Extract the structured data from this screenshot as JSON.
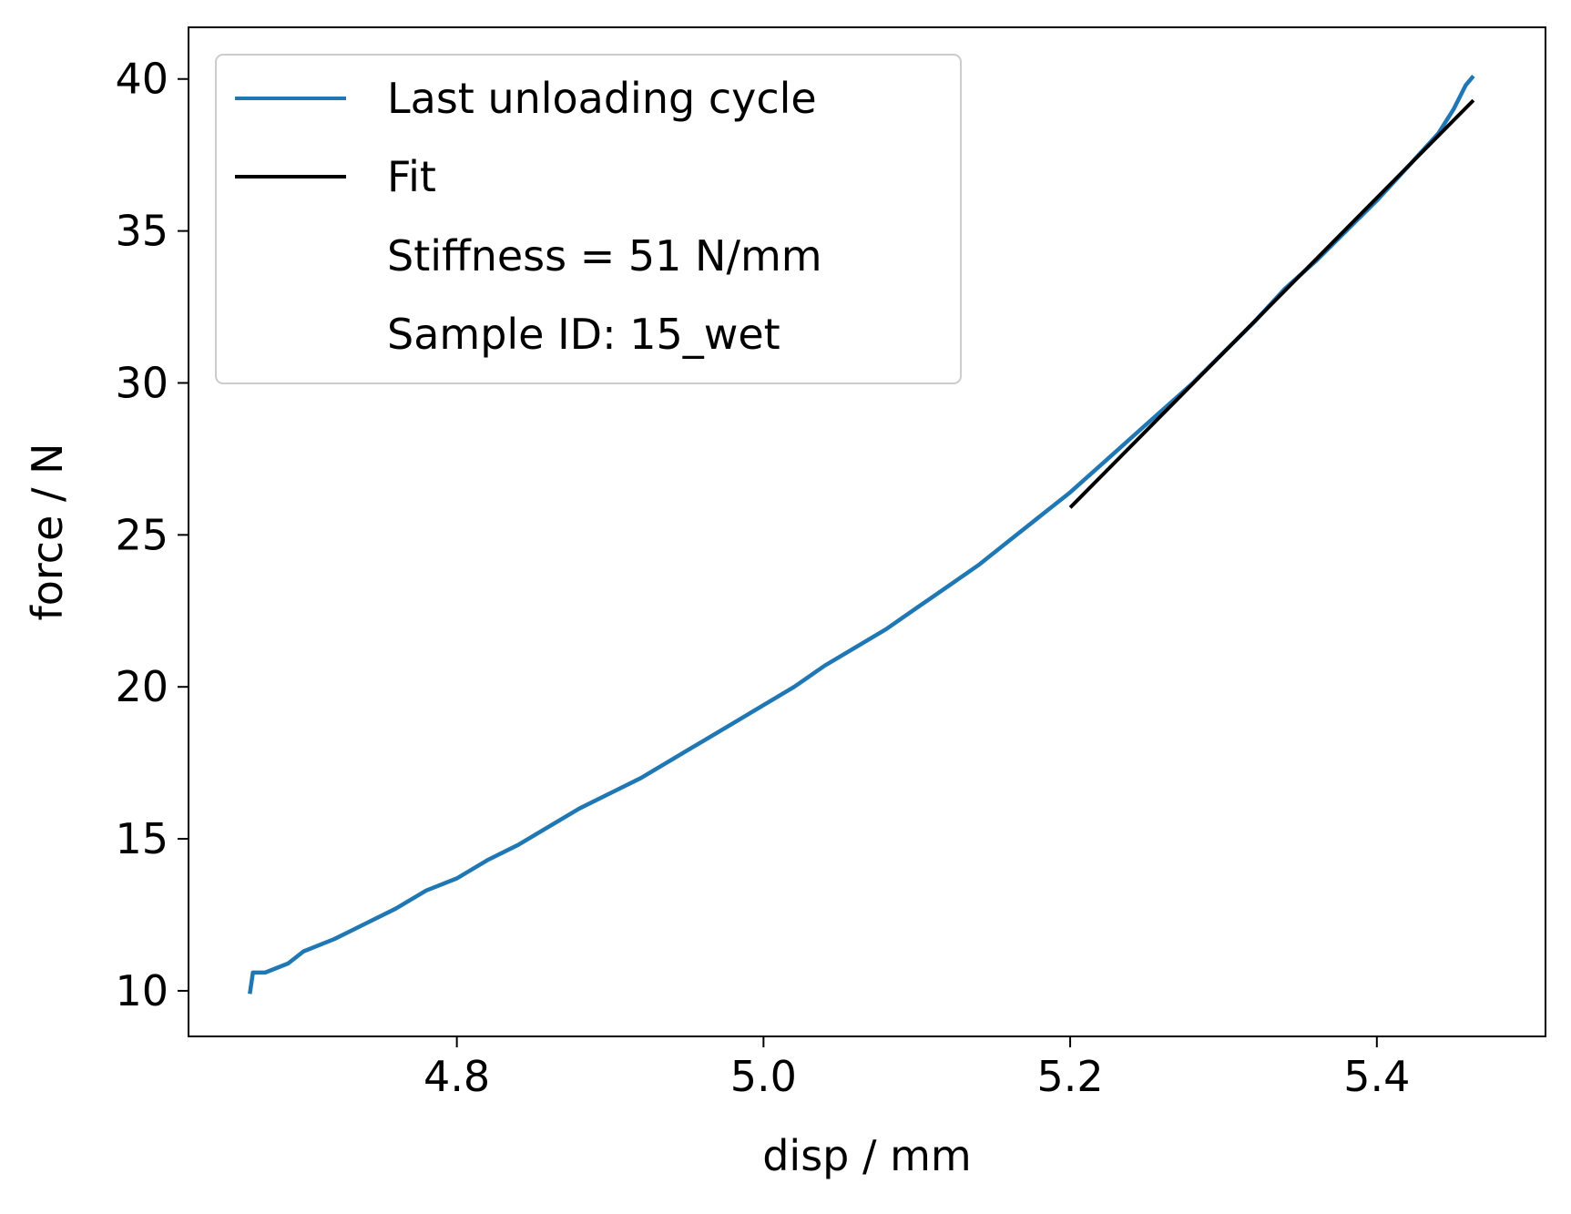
{
  "chart_data": {
    "type": "line",
    "title": "",
    "xlabel": "disp / mm",
    "ylabel": "force / N",
    "xlim": [
      4.625,
      5.51
    ],
    "ylim": [
      8.5,
      41.7
    ],
    "xticks": [
      4.8,
      5.0,
      5.2,
      5.4
    ],
    "xtick_labels": [
      "4.8",
      "5.0",
      "5.2",
      "5.4"
    ],
    "yticks": [
      10,
      15,
      20,
      25,
      30,
      35,
      40
    ],
    "ytick_labels": [
      "10",
      "15",
      "20",
      "25",
      "30",
      "35",
      "40"
    ],
    "grid": false,
    "legend_position": "upper-left",
    "legend": [
      {
        "label": "Last unloading cycle",
        "color": "#1f77b4",
        "marker": "line"
      },
      {
        "label": "Fit",
        "color": "#000000",
        "marker": "line"
      },
      {
        "label": "Stiffness = 51 N/mm",
        "color": "",
        "marker": "none"
      },
      {
        "label": "Sample ID: 15_wet",
        "color": "",
        "marker": "none"
      }
    ],
    "series": [
      {
        "name": "Last unloading cycle",
        "color": "#1f77b4",
        "x": [
          4.665,
          4.667,
          4.675,
          4.69,
          4.7,
          4.72,
          4.74,
          4.76,
          4.78,
          4.8,
          4.82,
          4.84,
          4.86,
          4.88,
          4.9,
          4.92,
          4.94,
          4.96,
          4.98,
          5.0,
          5.02,
          5.04,
          5.06,
          5.08,
          5.1,
          5.12,
          5.14,
          5.16,
          5.18,
          5.2,
          5.22,
          5.24,
          5.26,
          5.28,
          5.3,
          5.32,
          5.34,
          5.36,
          5.38,
          5.4,
          5.42,
          5.44,
          5.45,
          5.458,
          5.463
        ],
        "y": [
          9.9,
          10.6,
          10.6,
          10.9,
          11.3,
          11.7,
          12.2,
          12.7,
          13.3,
          13.7,
          14.3,
          14.8,
          15.4,
          16.0,
          16.5,
          17.0,
          17.6,
          18.2,
          18.8,
          19.4,
          20.0,
          20.7,
          21.3,
          21.9,
          22.6,
          23.3,
          24.0,
          24.8,
          25.6,
          26.4,
          27.3,
          28.2,
          29.1,
          30.0,
          31.0,
          32.0,
          33.1,
          34.0,
          35.0,
          36.0,
          37.1,
          38.2,
          39.0,
          39.8,
          40.1
        ]
      },
      {
        "name": "Fit",
        "color": "#000000",
        "x": [
          5.2,
          5.463
        ],
        "y": [
          25.9,
          39.3
        ]
      }
    ]
  }
}
